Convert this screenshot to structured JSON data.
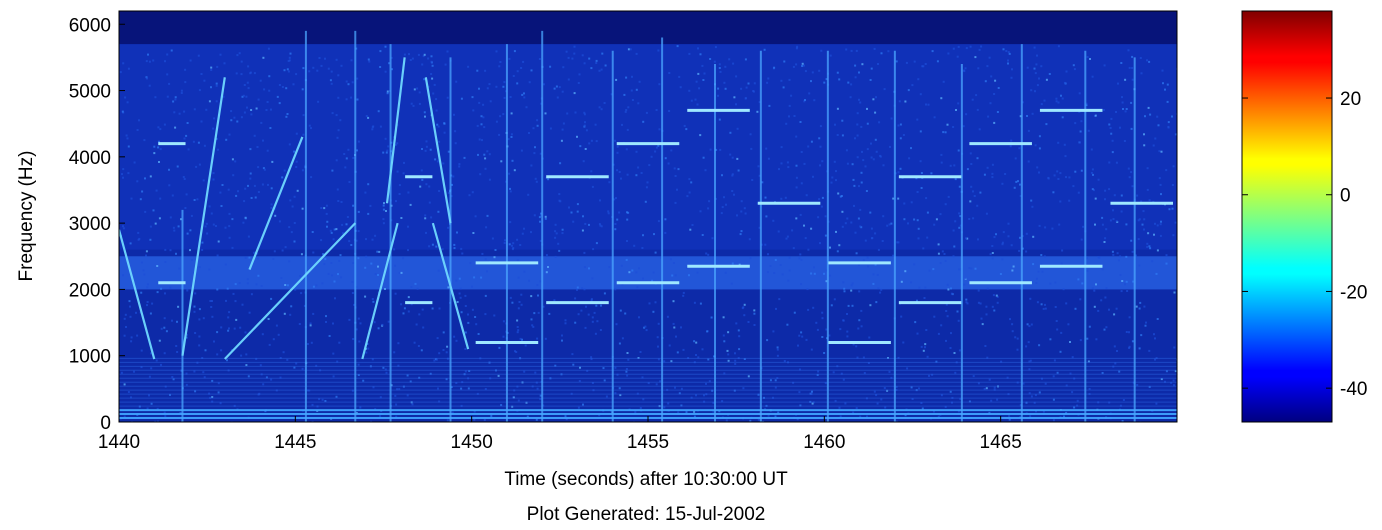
{
  "chart_data": {
    "type": "heatmap",
    "title": "",
    "xlabel": "Time (seconds) after 10:30:00 UT",
    "ylabel": "Frequency (Hz)",
    "footer": "Plot Generated: 15-Jul-2002",
    "xlim": [
      1440,
      1470
    ],
    "ylim": [
      0,
      6200
    ],
    "x_ticks": [
      1440,
      1445,
      1450,
      1455,
      1460,
      1465
    ],
    "x_tick_labels": [
      "1440",
      "1445",
      "1450",
      "1455",
      "1460",
      "1465"
    ],
    "y_ticks": [
      0,
      1000,
      2000,
      3000,
      4000,
      5000,
      6000
    ],
    "y_tick_labels": [
      "0",
      "1000",
      "2000",
      "3000",
      "4000",
      "5000",
      "6000"
    ],
    "colormap": "jet",
    "colorbar": {
      "range": [
        -47,
        38
      ],
      "ticks": [
        -40,
        -20,
        0,
        20
      ],
      "tick_labels": [
        "-40",
        "-20",
        "0",
        "20"
      ]
    },
    "background_level": -40,
    "noise_band_hz": [
      2000,
      2500
    ],
    "high_frequency_quiet_above_hz": 5700,
    "tones": [
      {
        "t0": 1441.0,
        "t1": 1442.0,
        "freq": 2100
      },
      {
        "t0": 1441.0,
        "t1": 1442.0,
        "freq": 4200
      },
      {
        "t0": 1448.0,
        "t1": 1449.0,
        "freq": 1800
      },
      {
        "t0": 1448.0,
        "t1": 1449.0,
        "freq": 3700
      },
      {
        "t0": 1450.0,
        "t1": 1452.0,
        "freq": 1200
      },
      {
        "t0": 1450.0,
        "t1": 1452.0,
        "freq": 2400
      },
      {
        "t0": 1452.0,
        "t1": 1454.0,
        "freq": 1800
      },
      {
        "t0": 1452.0,
        "t1": 1454.0,
        "freq": 3700
      },
      {
        "t0": 1454.0,
        "t1": 1456.0,
        "freq": 2100
      },
      {
        "t0": 1454.0,
        "t1": 1456.0,
        "freq": 4200
      },
      {
        "t0": 1456.0,
        "t1": 1458.0,
        "freq": 2350
      },
      {
        "t0": 1456.0,
        "t1": 1458.0,
        "freq": 4700
      },
      {
        "t0": 1458.0,
        "t1": 1460.0,
        "freq": 3300
      },
      {
        "t0": 1460.0,
        "t1": 1462.0,
        "freq": 1200
      },
      {
        "t0": 1460.0,
        "t1": 1462.0,
        "freq": 2400
      },
      {
        "t0": 1462.0,
        "t1": 1464.0,
        "freq": 1800
      },
      {
        "t0": 1462.0,
        "t1": 1464.0,
        "freq": 3700
      },
      {
        "t0": 1464.0,
        "t1": 1466.0,
        "freq": 2100
      },
      {
        "t0": 1464.0,
        "t1": 1466.0,
        "freq": 4200
      },
      {
        "t0": 1466.0,
        "t1": 1468.0,
        "freq": 2350
      },
      {
        "t0": 1466.0,
        "t1": 1468.0,
        "freq": 4700
      },
      {
        "t0": 1468.0,
        "t1": 1470.0,
        "freq": 3300
      }
    ],
    "sweeps": [
      {
        "t0": 1440.0,
        "f0": 2900,
        "t1": 1441.0,
        "f1": 950
      },
      {
        "t0": 1441.8,
        "f0": 1000,
        "t1": 1443.0,
        "f1": 5200
      },
      {
        "t0": 1443.0,
        "f0": 950,
        "t1": 1446.7,
        "f1": 3000
      },
      {
        "t0": 1443.7,
        "f0": 2300,
        "t1": 1445.2,
        "f1": 4300
      },
      {
        "t0": 1446.9,
        "f0": 950,
        "t1": 1447.9,
        "f1": 3000
      },
      {
        "t0": 1447.6,
        "f0": 3300,
        "t1": 1448.1,
        "f1": 5500
      },
      {
        "t0": 1448.7,
        "f0": 5200,
        "t1": 1449.4,
        "f1": 3000
      },
      {
        "t0": 1448.9,
        "f0": 3000,
        "t1": 1449.9,
        "f1": 1100
      }
    ],
    "impulses": [
      {
        "t": 1441.8,
        "top_hz": 3200
      },
      {
        "t": 1445.3,
        "top_hz": 5900
      },
      {
        "t": 1446.7,
        "top_hz": 5900
      },
      {
        "t": 1447.7,
        "top_hz": 5700
      },
      {
        "t": 1449.4,
        "top_hz": 5500
      },
      {
        "t": 1451.0,
        "top_hz": 5700
      },
      {
        "t": 1452.0,
        "top_hz": 5900
      },
      {
        "t": 1454.0,
        "top_hz": 5600
      },
      {
        "t": 1455.4,
        "top_hz": 5800
      },
      {
        "t": 1456.9,
        "top_hz": 5400
      },
      {
        "t": 1458.2,
        "top_hz": 5600
      },
      {
        "t": 1460.1,
        "top_hz": 5600
      },
      {
        "t": 1462.0,
        "top_hz": 5600
      },
      {
        "t": 1463.9,
        "top_hz": 5400
      },
      {
        "t": 1465.6,
        "top_hz": 5700
      },
      {
        "t": 1467.4,
        "top_hz": 5600
      },
      {
        "t": 1468.8,
        "top_hz": 5500
      }
    ]
  }
}
